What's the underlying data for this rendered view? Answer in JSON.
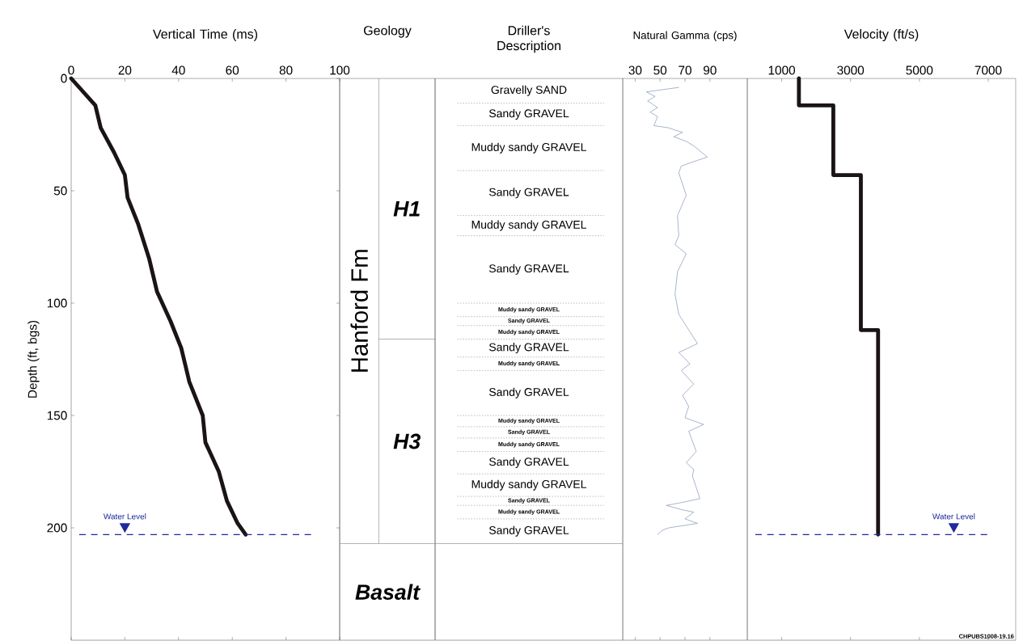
{
  "chart_data": [
    {
      "type": "line",
      "xlabel": "Vertical Time (ms)",
      "ylabel": "Depth (ft, bgs)",
      "xlim": [
        0,
        100
      ],
      "xticks": [
        0,
        20,
        40,
        60,
        80,
        100
      ],
      "ylim": [
        250,
        0
      ],
      "yticks": [
        0,
        50,
        100,
        150,
        200
      ],
      "series": [
        {
          "color": "#1a1414",
          "x": [
            0,
            9,
            11,
            16,
            20,
            21,
            25,
            29,
            32,
            37,
            41,
            44,
            49,
            50,
            55,
            58,
            62,
            65
          ],
          "values": [
            0,
            12,
            22,
            33,
            43,
            53,
            65,
            80,
            95,
            108,
            120,
            135,
            150,
            162,
            175,
            188,
            198,
            203
          ]
        }
      ],
      "ref_lines": [
        {
          "axis": "y",
          "value": 203,
          "color": "#1f2a9c",
          "line_style": "dashed"
        }
      ],
      "annotations": [
        {
          "text": "Water Level",
          "x": 20,
          "y": 203
        }
      ]
    },
    {
      "type": "other",
      "title": "Geology",
      "annotations": [
        "Hanford Fm",
        "H1",
        "H3",
        "Basalt"
      ]
    },
    {
      "type": "other",
      "title": "Driller's Description",
      "annotations": [
        "Gravelly SAND",
        "Sandy GRAVEL",
        "Muddy sandy GRAVEL",
        "Sandy GRAVEL",
        "Muddy sandy GRAVEL",
        "Sandy GRAVEL",
        "Muddy sandy GRAVEL",
        "Sandy GRAVEL",
        "Muddy sandy GRAVEL",
        "Sandy GRAVEL",
        "Muddy sandy GRAVEL",
        "Sandy GRAVEL",
        "Muddy sandy GRAVEL",
        "Sandy GRAVEL",
        "Muddy sandy GRAVEL",
        "Sandy GRAVEL",
        "Muddy sandy GRAVEL",
        "Sandy GRAVEL",
        "Muddy sandy GRAVEL",
        "Sandy GRAVEL"
      ]
    },
    {
      "type": "line",
      "xlabel": "Natural Gamma (cps)",
      "xlim": [
        20,
        120
      ],
      "xticks": [
        30,
        50,
        70,
        90
      ],
      "ylim": [
        250,
        0
      ],
      "tick_labels": "x",
      "series": [
        {
          "color": "#7b8fb3",
          "x": [
            65,
            39,
            46,
            40,
            48,
            42,
            48,
            45,
            57,
            62,
            68,
            61,
            71,
            77,
            88,
            77,
            67,
            65,
            71,
            64,
            65,
            62,
            71,
            64,
            62,
            65,
            80,
            65,
            74,
            67,
            77,
            68,
            73,
            70,
            80,
            85,
            73,
            79,
            71,
            77,
            76,
            82,
            65,
            55,
            68,
            77,
            70,
            80,
            57,
            52,
            48
          ],
          "values": [
            4,
            6,
            8,
            10,
            13,
            15,
            17,
            21,
            22,
            23,
            24,
            26,
            28,
            30,
            35,
            37,
            39,
            42,
            52,
            61,
            70,
            74,
            78,
            86,
            96,
            105,
            118,
            122,
            127,
            130,
            136,
            141,
            146,
            151,
            153,
            154,
            157,
            166,
            171,
            174,
            177,
            187,
            189,
            190,
            192,
            193,
            196,
            198,
            200,
            201,
            203
          ]
        }
      ]
    },
    {
      "type": "line",
      "xlabel": "Velocity (ft/s)",
      "xlim": [
        0,
        7800
      ],
      "xticks": [
        1000,
        3000,
        5000,
        7000
      ],
      "ylim": [
        250,
        0
      ],
      "tick_labels": "x",
      "series": [
        {
          "color": "#1a1414",
          "x": [
            1500,
            1500,
            2500,
            2500,
            3300,
            3300,
            3800,
            3800
          ],
          "values": [
            0,
            12,
            12,
            43,
            43,
            112,
            112,
            203
          ]
        }
      ],
      "ref_lines": [
        {
          "axis": "y",
          "value": 203,
          "color": "#1f2a9c",
          "line_style": "dashed"
        }
      ],
      "annotations": [
        {
          "text": "Water Level",
          "x": 6000,
          "y": 203
        },
        "CHPUBS1008-19.16"
      ]
    }
  ]
}
